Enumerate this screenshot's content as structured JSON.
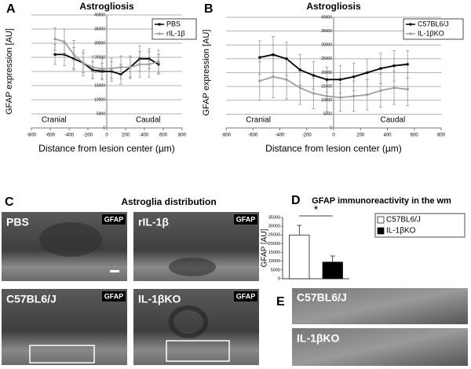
{
  "chart_data": [
    {
      "type": "line",
      "panel": "A",
      "title": "Astrogliosis",
      "x_label": "Distance from lesion center (µm)",
      "y_label": "GFAP expression [AU]",
      "x": [
        -550,
        -450,
        -350,
        -250,
        -150,
        -50,
        50,
        150,
        250,
        350,
        450,
        550
      ],
      "series": [
        {
          "name": "PBS",
          "color": "#000000",
          "values": [
            26000,
            26000,
            24500,
            23000,
            20500,
            20000,
            20000,
            19000,
            21500,
            24500,
            24500,
            22500
          ],
          "errors": [
            3500,
            4000,
            4000,
            3500,
            3000,
            3000,
            3500,
            3500,
            3500,
            4500,
            3500,
            3500
          ]
        },
        {
          "name": "rIL-1β",
          "color": "#a0a0a0",
          "values": [
            31500,
            30500,
            26000,
            23000,
            21500,
            21000,
            21000,
            21500,
            21500,
            22500,
            22500,
            23500
          ],
          "errors": [
            4000,
            4500,
            5000,
            4500,
            4000,
            3500,
            3500,
            4000,
            4000,
            4500,
            4500,
            4000
          ]
        }
      ],
      "xlim": [
        -800,
        800
      ],
      "xticks": [
        -800,
        -600,
        -400,
        -200,
        0,
        200,
        400,
        600,
        800
      ],
      "ylim": [
        0,
        40000
      ],
      "yticks": [
        0,
        5000,
        10000,
        15000,
        20000,
        25000,
        30000,
        35000,
        40000
      ],
      "grid": true,
      "legend": "top-right",
      "annotations": [
        "Cranial",
        "Caudal"
      ]
    },
    {
      "type": "line",
      "panel": "B",
      "title": "Astrogliosis",
      "x_label": "Distance from lesion center (µm)",
      "y_label": "GFAP expression [AU]",
      "x": [
        -550,
        -450,
        -350,
        -250,
        -150,
        -50,
        50,
        150,
        250,
        350,
        450,
        550
      ],
      "series": [
        {
          "name": "C57BL6/J",
          "color": "#000000",
          "values": [
            25500,
            26500,
            25000,
            21000,
            19000,
            17500,
            17500,
            18500,
            20000,
            21500,
            22500,
            23000
          ],
          "errors": [
            6000,
            6500,
            6000,
            5500,
            5000,
            4500,
            5000,
            5000,
            5000,
            5500,
            5500,
            5000
          ]
        },
        {
          "name": "IL-1βKO",
          "color": "#a0a0a0",
          "values": [
            17000,
            18500,
            17500,
            14500,
            12500,
            11500,
            11000,
            11500,
            12000,
            13500,
            14500,
            14000
          ],
          "errors": [
            7000,
            7500,
            7000,
            6000,
            5500,
            5500,
            5000,
            5500,
            5500,
            6000,
            6000,
            6000
          ]
        }
      ],
      "xlim": [
        -800,
        800
      ],
      "xticks": [
        -800,
        -600,
        -400,
        -200,
        0,
        200,
        400,
        600,
        800
      ],
      "ylim": [
        0,
        40000
      ],
      "yticks": [
        0,
        5000,
        10000,
        15000,
        20000,
        25000,
        30000,
        35000,
        40000
      ],
      "grid": true,
      "legend": "top-right",
      "annotations": [
        "Cranial",
        "Caudal"
      ]
    },
    {
      "type": "bar",
      "panel": "D",
      "title": "GFAP immunoreactivity in the wm",
      "y_label": "GFAP [AU]",
      "categories": [
        "C57BL6/J",
        "IL-1βKO"
      ],
      "colors": [
        "#ffffff",
        "#000000"
      ],
      "values": [
        25000,
        9500
      ],
      "errors": [
        5500,
        3500
      ],
      "ylim": [
        0,
        35000
      ],
      "yticks": [
        0,
        5000,
        10000,
        15000,
        20000,
        25000,
        30000,
        35000
      ],
      "legend": "right",
      "significance": "*"
    }
  ],
  "panel_c": {
    "letter": "C",
    "title": "Astroglia distribution",
    "images": [
      {
        "label": "PBS",
        "stain": "GFAP"
      },
      {
        "label": "rIL-1β",
        "stain": "GFAP"
      },
      {
        "label": "C57BL6/J",
        "stain": "GFAP"
      },
      {
        "label": "IL-1βKO",
        "stain": "GFAP"
      }
    ]
  },
  "panel_e": {
    "letter": "E",
    "images": [
      {
        "label": "C57BL6/J"
      },
      {
        "label": "IL-1βKO"
      }
    ]
  }
}
